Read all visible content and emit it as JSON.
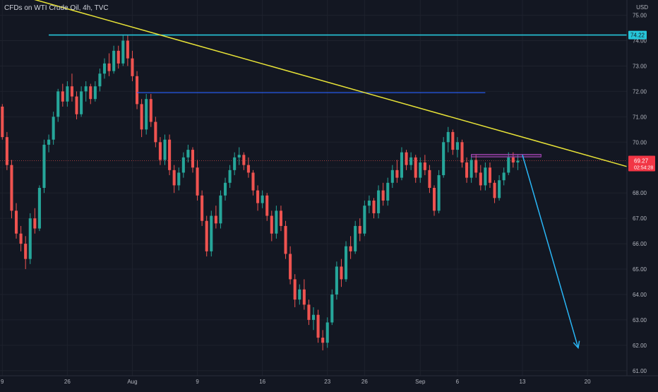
{
  "header": {
    "title": "CFDs on WTI Crude Oil, 4h, TVC",
    "currency": "USD"
  },
  "colors": {
    "background": "#131722",
    "grid": "#1e222d",
    "up": "#26a69a",
    "down": "#ef5350",
    "trendline": "#e8e337",
    "resistance": "#26c6da",
    "level": "#2962ff",
    "range_box": "#ab47bc",
    "arrow": "#29b6f6",
    "price_label": "#f23645"
  },
  "chart_data": {
    "type": "candlestick",
    "symbol": "CFDs on WTI Crude Oil",
    "interval": "4h",
    "source": "TVC",
    "y_range": [
      60.8,
      75.6
    ],
    "y_ticks": [
      61.0,
      62.0,
      63.0,
      64.0,
      65.0,
      66.0,
      67.0,
      68.0,
      69.0,
      70.0,
      71.0,
      72.0,
      73.0,
      74.0,
      75.0
    ],
    "y_tick_labels": [
      "61.00",
      "62.00",
      "63.00",
      "64.00",
      "65.00",
      "66.00",
      "67.00",
      "68.00",
      "69.00",
      "70.00",
      "71.00",
      "72.00",
      "73.00",
      "74.00",
      "75.00"
    ],
    "x_range": [
      -0.5,
      134.5
    ],
    "x_ticks": [
      {
        "index": 0,
        "label": "9"
      },
      {
        "index": 14,
        "label": "26"
      },
      {
        "index": 28,
        "label": "Aug"
      },
      {
        "index": 42,
        "label": "9"
      },
      {
        "index": 56,
        "label": "16"
      },
      {
        "index": 70,
        "label": "23"
      },
      {
        "index": 78,
        "label": "26"
      },
      {
        "index": 90,
        "label": "Sep"
      },
      {
        "index": 98,
        "label": "6"
      },
      {
        "index": 112,
        "label": "13"
      },
      {
        "index": 126,
        "label": "20"
      }
    ],
    "candles": [
      [
        71.4,
        71.5,
        70.1,
        70.2
      ],
      [
        70.2,
        70.4,
        68.9,
        69.1
      ],
      [
        69.1,
        69.3,
        67.0,
        67.3
      ],
      [
        67.3,
        67.6,
        66.2,
        66.4
      ],
      [
        66.4,
        66.7,
        65.7,
        66.0
      ],
      [
        66.0,
        66.3,
        65.0,
        65.4
      ],
      [
        65.4,
        67.2,
        65.2,
        67.0
      ],
      [
        67.0,
        67.4,
        66.4,
        66.6
      ],
      [
        66.6,
        68.3,
        66.5,
        68.2
      ],
      [
        68.2,
        70.1,
        68.0,
        69.9
      ],
      [
        69.9,
        70.3,
        69.6,
        70.1
      ],
      [
        70.1,
        71.2,
        69.9,
        71.0
      ],
      [
        71.0,
        72.1,
        70.8,
        72.0
      ],
      [
        72.0,
        72.3,
        71.4,
        71.6
      ],
      [
        71.6,
        72.4,
        71.4,
        72.2
      ],
      [
        72.2,
        72.7,
        71.6,
        71.8
      ],
      [
        71.8,
        72.0,
        70.9,
        71.1
      ],
      [
        71.1,
        72.2,
        71.0,
        72.0
      ],
      [
        72.0,
        72.4,
        71.6,
        72.2
      ],
      [
        72.2,
        72.3,
        71.5,
        71.7
      ],
      [
        71.7,
        72.4,
        71.6,
        72.2
      ],
      [
        72.2,
        72.9,
        72.0,
        72.7
      ],
      [
        72.7,
        73.3,
        72.5,
        73.1
      ],
      [
        73.1,
        73.5,
        72.6,
        72.8
      ],
      [
        72.8,
        73.8,
        72.7,
        73.6
      ],
      [
        73.6,
        73.8,
        72.9,
        73.1
      ],
      [
        73.1,
        74.2,
        73.0,
        74.0
      ],
      [
        74.0,
        74.2,
        73.0,
        73.3
      ],
      [
        73.3,
        73.6,
        72.4,
        72.6
      ],
      [
        72.6,
        72.8,
        71.3,
        71.5
      ],
      [
        71.5,
        71.7,
        70.2,
        70.5
      ],
      [
        70.5,
        71.9,
        70.3,
        71.7
      ],
      [
        71.7,
        71.9,
        70.6,
        70.8
      ],
      [
        70.8,
        71.0,
        69.8,
        70.0
      ],
      [
        70.0,
        70.2,
        69.1,
        69.3
      ],
      [
        69.3,
        70.3,
        69.1,
        70.1
      ],
      [
        70.1,
        70.3,
        68.7,
        68.9
      ],
      [
        68.9,
        69.1,
        68.0,
        68.3
      ],
      [
        68.3,
        69.0,
        68.1,
        68.8
      ],
      [
        68.8,
        69.6,
        68.6,
        69.4
      ],
      [
        69.4,
        69.9,
        69.2,
        69.7
      ],
      [
        69.7,
        69.8,
        68.8,
        69.0
      ],
      [
        69.0,
        69.3,
        67.7,
        67.9
      ],
      [
        67.9,
        68.1,
        66.7,
        66.9
      ],
      [
        66.9,
        67.1,
        65.5,
        65.7
      ],
      [
        65.7,
        67.3,
        65.5,
        67.1
      ],
      [
        67.1,
        67.5,
        66.6,
        66.8
      ],
      [
        66.8,
        68.1,
        66.6,
        67.9
      ],
      [
        67.9,
        68.6,
        67.7,
        68.4
      ],
      [
        68.4,
        69.1,
        68.2,
        68.9
      ],
      [
        68.9,
        69.6,
        68.7,
        69.4
      ],
      [
        69.4,
        69.8,
        69.1,
        69.5
      ],
      [
        69.5,
        69.6,
        68.9,
        69.1
      ],
      [
        69.1,
        69.4,
        68.6,
        68.8
      ],
      [
        68.8,
        68.9,
        67.9,
        68.1
      ],
      [
        68.1,
        68.3,
        67.3,
        67.6
      ],
      [
        67.6,
        68.1,
        67.4,
        67.9
      ],
      [
        67.9,
        68.0,
        66.9,
        67.1
      ],
      [
        67.1,
        67.3,
        66.1,
        66.4
      ],
      [
        66.4,
        67.5,
        66.2,
        67.3
      ],
      [
        67.3,
        67.5,
        66.5,
        66.7
      ],
      [
        66.7,
        66.9,
        65.4,
        65.6
      ],
      [
        65.6,
        65.9,
        64.4,
        64.6
      ],
      [
        64.6,
        64.8,
        63.5,
        63.8
      ],
      [
        63.8,
        64.4,
        63.6,
        64.2
      ],
      [
        64.2,
        64.6,
        63.4,
        63.6
      ],
      [
        63.6,
        63.8,
        62.8,
        63.0
      ],
      [
        63.0,
        63.5,
        62.6,
        63.2
      ],
      [
        63.2,
        63.4,
        62.1,
        62.3
      ],
      [
        62.3,
        62.6,
        61.8,
        62.1
      ],
      [
        62.1,
        63.1,
        61.9,
        62.9
      ],
      [
        62.9,
        64.2,
        62.8,
        64.0
      ],
      [
        64.0,
        65.3,
        63.8,
        65.1
      ],
      [
        65.1,
        65.4,
        64.3,
        64.6
      ],
      [
        64.6,
        66.1,
        64.5,
        65.9
      ],
      [
        65.9,
        66.3,
        65.4,
        65.7
      ],
      [
        65.7,
        66.9,
        65.6,
        66.7
      ],
      [
        66.7,
        67.0,
        66.1,
        66.4
      ],
      [
        66.4,
        67.7,
        66.3,
        67.5
      ],
      [
        67.5,
        67.9,
        67.2,
        67.7
      ],
      [
        67.7,
        67.8,
        67.0,
        67.2
      ],
      [
        67.2,
        68.3,
        67.0,
        68.1
      ],
      [
        68.1,
        68.4,
        67.5,
        67.7
      ],
      [
        67.7,
        68.6,
        67.5,
        68.4
      ],
      [
        68.4,
        69.1,
        68.2,
        68.9
      ],
      [
        68.9,
        69.3,
        68.4,
        68.6
      ],
      [
        68.6,
        69.8,
        68.5,
        69.6
      ],
      [
        69.6,
        69.7,
        68.9,
        69.1
      ],
      [
        69.1,
        69.6,
        68.9,
        69.4
      ],
      [
        69.4,
        69.5,
        68.4,
        68.6
      ],
      [
        68.6,
        69.4,
        68.4,
        69.2
      ],
      [
        69.2,
        69.5,
        68.7,
        68.9
      ],
      [
        68.9,
        69.1,
        68.0,
        68.2
      ],
      [
        68.2,
        68.3,
        67.1,
        67.3
      ],
      [
        67.3,
        68.9,
        67.2,
        68.7
      ],
      [
        68.7,
        70.2,
        68.6,
        70.0
      ],
      [
        70.0,
        70.6,
        69.6,
        70.4
      ],
      [
        70.4,
        70.5,
        69.5,
        69.7
      ],
      [
        69.7,
        70.2,
        69.4,
        70.0
      ],
      [
        70.0,
        70.1,
        69.0,
        69.2
      ],
      [
        69.2,
        69.4,
        68.4,
        68.6
      ],
      [
        68.6,
        69.5,
        68.4,
        69.3
      ],
      [
        69.3,
        69.5,
        68.6,
        68.8
      ],
      [
        68.8,
        69.1,
        68.1,
        68.3
      ],
      [
        68.3,
        69.2,
        68.1,
        69.0
      ],
      [
        69.0,
        69.2,
        68.2,
        68.4
      ],
      [
        68.4,
        68.5,
        67.6,
        67.8
      ],
      [
        67.8,
        68.7,
        67.7,
        68.5
      ],
      [
        68.5,
        69.0,
        68.3,
        68.8
      ],
      [
        68.8,
        69.6,
        68.7,
        69.4
      ],
      [
        69.4,
        69.6,
        69.0,
        69.2
      ],
      [
        69.2,
        69.5,
        68.9,
        69.27
      ]
    ],
    "last_price": "69.27",
    "countdown": "02:54:28",
    "annotations": {
      "resistance": {
        "value": 74.22,
        "label": "74.22",
        "from_index": 10
      },
      "trendline": {
        "from": [
          -0.5,
          76.0
        ],
        "to": [
          134.5,
          69.04
        ]
      },
      "level_line": {
        "value": 71.95,
        "from_index": 29,
        "to_index": 104
      },
      "range_box": {
        "from_index": 101,
        "to_index": 116,
        "low": 69.42,
        "high": 69.52
      },
      "arrow": {
        "from": [
          112,
          69.5
        ],
        "to": [
          124,
          61.9
        ]
      }
    }
  }
}
